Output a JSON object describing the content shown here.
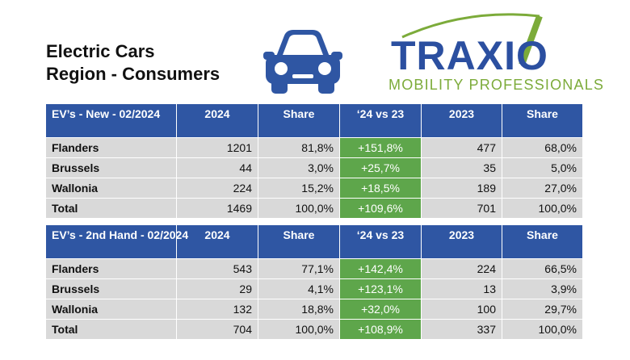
{
  "title": {
    "line1": "Electric Cars",
    "line2": "Region - Consumers"
  },
  "logo": {
    "brand": "TRAXIO",
    "tagline": "MOBILITY PROFESSIONALS",
    "colors": {
      "blue": "#2b4fa0",
      "green": "#7cab3a"
    }
  },
  "icons": {
    "car": "car-icon"
  },
  "colors": {
    "header": "#2f56a3",
    "row": "#d9d9d9",
    "change": "#5ea64b"
  },
  "tables": [
    {
      "header": [
        "EV’s - New - 02/2024",
        "2024",
        "Share",
        "‘24 vs 23",
        "2023",
        "Share"
      ],
      "rows": [
        [
          "Flanders",
          "1201",
          "81,8%",
          "+151,8%",
          "477",
          "68,0%"
        ],
        [
          "Brussels",
          "44",
          "3,0%",
          "+25,7%",
          "35",
          "5,0%"
        ],
        [
          "Wallonia",
          "224",
          "15,2%",
          "+18,5%",
          "189",
          "27,0%"
        ],
        [
          "Total",
          "1469",
          "100,0%",
          "+109,6%",
          "701",
          "100,0%"
        ]
      ]
    },
    {
      "header": [
        "EV’s - 2nd Hand - 02/2024",
        "2024",
        "Share",
        "‘24 vs 23",
        "2023",
        "Share"
      ],
      "rows": [
        [
          "Flanders",
          "543",
          "77,1%",
          "+142,4%",
          "224",
          "66,5%"
        ],
        [
          "Brussels",
          "29",
          "4,1%",
          "+123,1%",
          "13",
          "3,9%"
        ],
        [
          "Wallonia",
          "132",
          "18,8%",
          "+32,0%",
          "100",
          "29,7%"
        ],
        [
          "Total",
          "704",
          "100,0%",
          "+108,9%",
          "337",
          "100,0%"
        ]
      ]
    }
  ]
}
